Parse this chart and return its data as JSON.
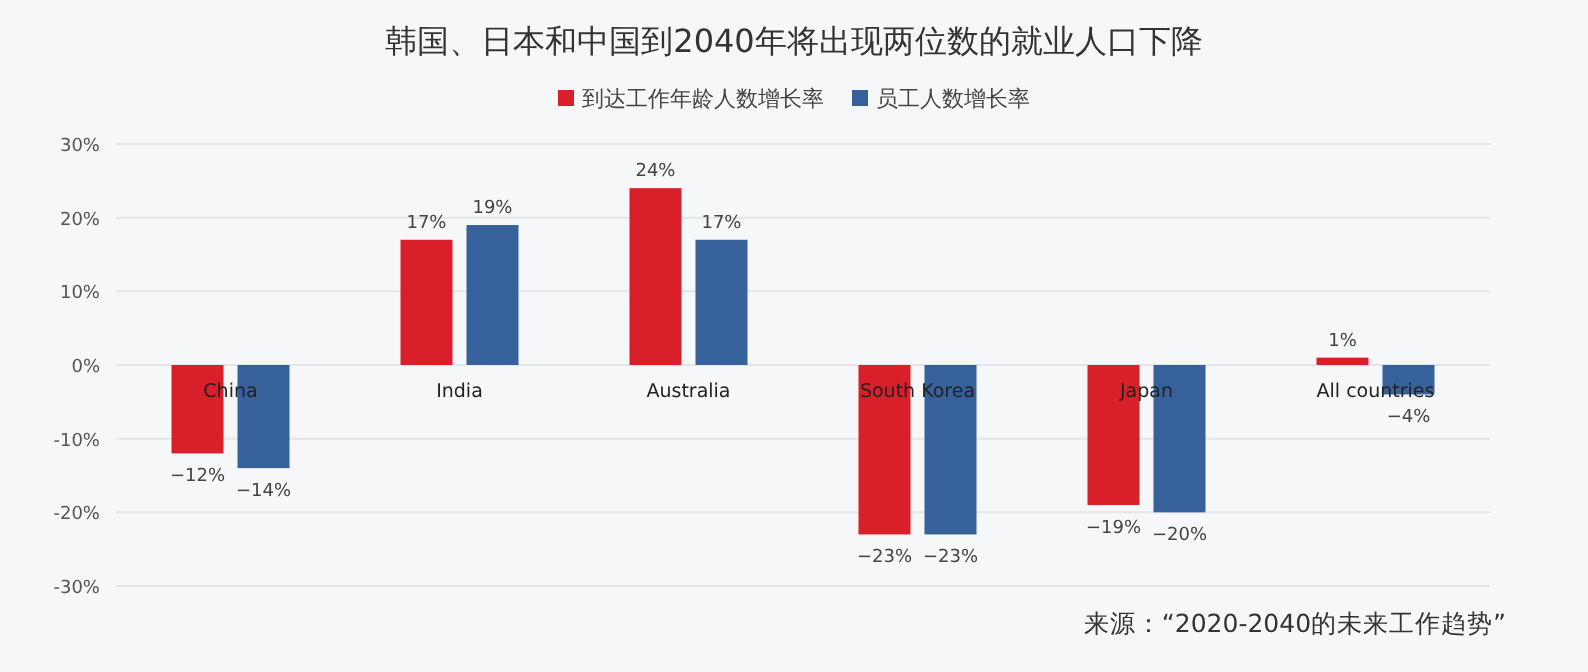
{
  "chart_data": {
    "type": "bar",
    "title": "韩国、日本和中国到2040年将出现两位数的就业人口下降",
    "categories": [
      "China",
      "India",
      "Australia",
      "South Korea",
      "Japan",
      "All countries"
    ],
    "series": [
      {
        "name": "到达工作年龄人数增长率",
        "color": "#d91f2a",
        "values": [
          -12,
          17,
          24,
          -23,
          -19,
          1
        ],
        "value_labels": [
          "−12%",
          "17%",
          "24%",
          "−23%",
          "−19%",
          "1%"
        ]
      },
      {
        "name": "员工人数增长率",
        "color": "#37619b",
        "values": [
          -14,
          19,
          17,
          -23,
          -20,
          -4
        ],
        "value_labels": [
          "−14%",
          "19%",
          "17%",
          "−23%",
          "−20%",
          "−4%"
        ]
      }
    ],
    "ylim": [
      -30,
      30
    ],
    "yticks": [
      {
        "value": -30,
        "label": "-30%"
      },
      {
        "value": -20,
        "label": "-20%"
      },
      {
        "value": -10,
        "label": "-10%"
      },
      {
        "value": 0,
        "label": "0%"
      },
      {
        "value": 10,
        "label": "10%"
      },
      {
        "value": 20,
        "label": "20%"
      },
      {
        "value": 30,
        "label": "30%"
      }
    ],
    "grid": "y",
    "legend": "top",
    "annotations": [
      "来源：“2020-2040的未来工作趋势”"
    ]
  }
}
